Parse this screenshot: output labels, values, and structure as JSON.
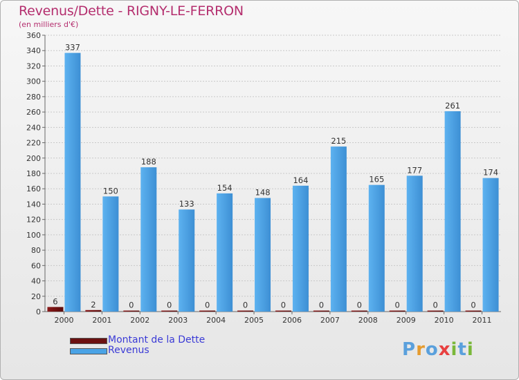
{
  "header": {
    "title": "Revenus/Dette - RIGNY-LE-FERRON",
    "subtitle": "(en milliers d'€)"
  },
  "legend": {
    "items": [
      {
        "label": "Montant de la Dette",
        "color": "#6b1010"
      },
      {
        "label": "Revenus",
        "color": "#4aa3e6"
      }
    ]
  },
  "logo": {
    "text": "Proxiti",
    "colors": [
      "#5aa0dc",
      "#e59b2f",
      "#5aa0dc",
      "#e84040",
      "#7ab83a",
      "#5aa0dc",
      "#7ab83a"
    ]
  },
  "colors": {
    "debt": "#6b1010",
    "revenue": "#4aa3e6",
    "grid": "#c8c8c8",
    "axis": "#666666"
  },
  "chart_data": {
    "type": "bar",
    "title": "Revenus/Dette - RIGNY-LE-FERRON",
    "subtitle": "(en milliers d'€)",
    "xlabel": "",
    "ylabel": "",
    "ylim": [
      0,
      360
    ],
    "ytick_step": 20,
    "grid": true,
    "legend_position": "bottom-left",
    "categories": [
      "2000",
      "2001",
      "2002",
      "2003",
      "2004",
      "2005",
      "2006",
      "2007",
      "2008",
      "2009",
      "2010",
      "2011"
    ],
    "series": [
      {
        "name": "Montant de la Dette",
        "values": [
          6,
          2,
          0,
          0,
          0,
          0,
          0,
          0,
          0,
          0,
          0,
          0
        ]
      },
      {
        "name": "Revenus",
        "values": [
          337,
          150,
          188,
          133,
          154,
          148,
          164,
          215,
          165,
          177,
          261,
          174
        ]
      }
    ]
  }
}
